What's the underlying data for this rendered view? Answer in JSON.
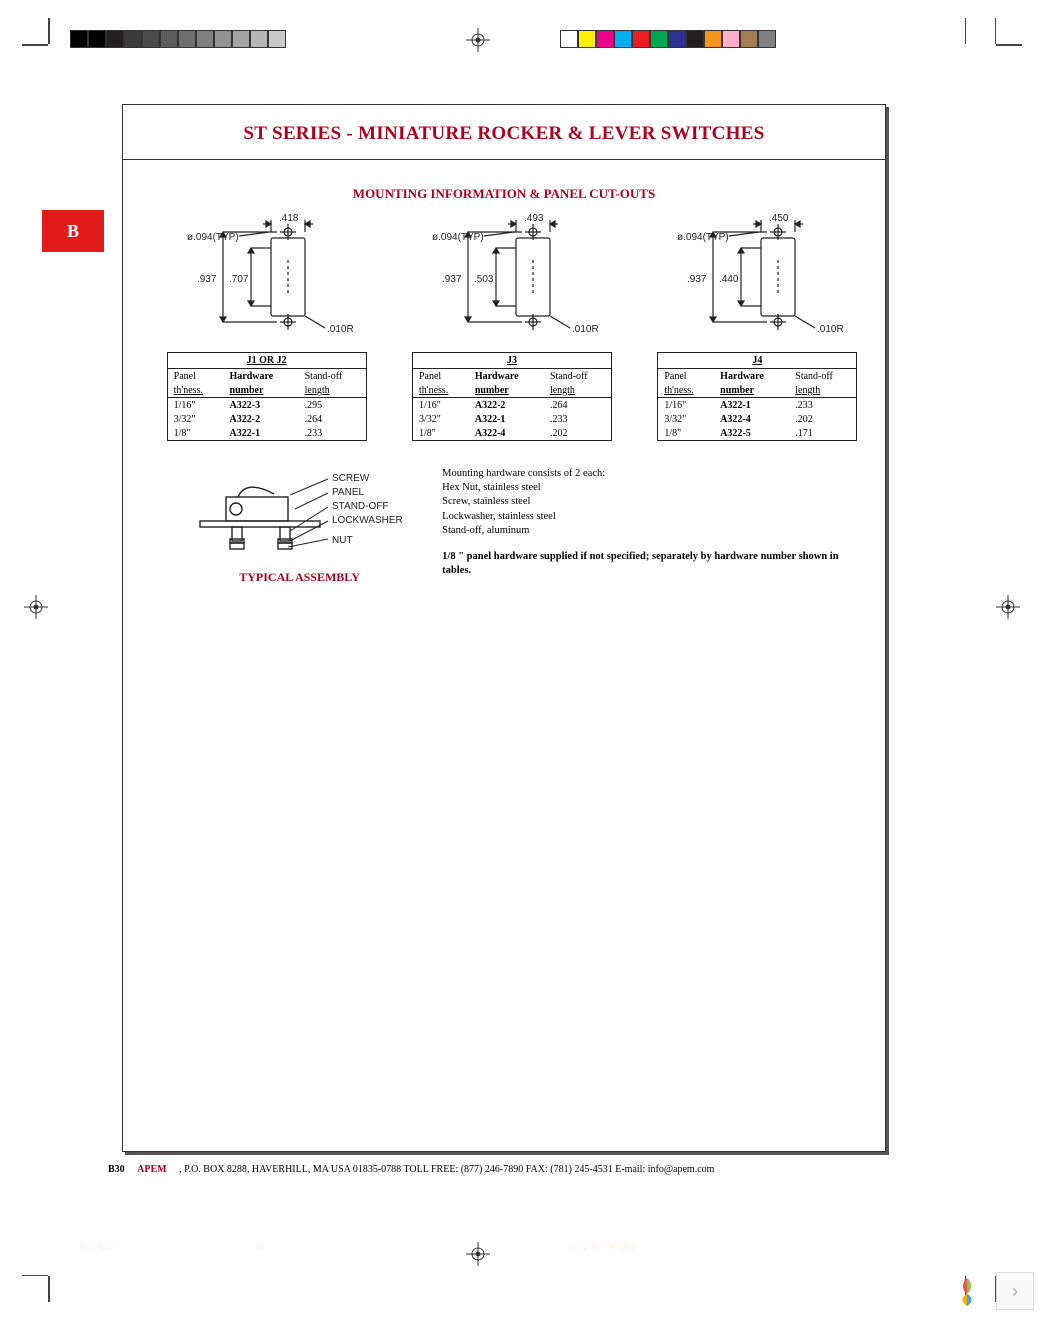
{
  "header": {
    "title": "ST SERIES - MINIATURE ROCKER & LEVER SWITCHES"
  },
  "section_tab": "B",
  "section_title": "MOUNTING INFORMATION & PANEL CUT-OUTS",
  "swatches_left": [
    "#000000",
    "#000000",
    "#231f20",
    "#3a3a3a",
    "#4b4b4b",
    "#5c5c5c",
    "#6e6e6e",
    "#808080",
    "#929292",
    "#a4a4a4",
    "#b6b6b6",
    "#c8c8c8"
  ],
  "swatches_right": [
    "#ffffff",
    "#fff000",
    "#ec008c",
    "#00aeef",
    "#ed1c24",
    "#00a651",
    "#2e3192",
    "#231f20",
    "#f7941d",
    "#ffaec9",
    "#a67c52",
    "#808285"
  ],
  "cutouts": [
    {
      "caption": "J1 OR J2",
      "dia_label": "ø.094(TYP)",
      "width": ".418",
      "h_outer": ".937",
      "h_inner": ".707",
      "radius": ".010R",
      "headers": [
        "Panel",
        "Hardware",
        "Stand-off"
      ],
      "subheaders": [
        "th'ness.",
        "number",
        "length"
      ],
      "rows": [
        [
          "1/16\"",
          "A322-3",
          ".295"
        ],
        [
          "3/32\"",
          "A322-2",
          ".264"
        ],
        [
          "1/8\"",
          "A322-1",
          ".233"
        ]
      ]
    },
    {
      "caption": "J3",
      "dia_label": "ø.094(TYP)",
      "width": ".493",
      "h_outer": ".937",
      "h_inner": ".503",
      "radius": ".010R",
      "headers": [
        "Panel",
        "Hardware",
        "Stand-off"
      ],
      "subheaders": [
        "th'ness.",
        "number",
        "length"
      ],
      "rows": [
        [
          "1/16\"",
          "A322-2",
          ".264"
        ],
        [
          "3/32\"",
          "A322-1",
          ".233"
        ],
        [
          "1/8\"",
          "A322-4",
          ".202"
        ]
      ]
    },
    {
      "caption": "J4",
      "dia_label": "ø.094(TYP)",
      "width": ".450",
      "h_outer": ".937",
      "h_inner": ".440",
      "radius": ".010R",
      "headers": [
        "Panel",
        "Hardware",
        "Stand-off"
      ],
      "subheaders": [
        "th'ness.",
        "number",
        "length"
      ],
      "rows": [
        [
          "1/16\"",
          "A322-1",
          ".233"
        ],
        [
          "3/32\"",
          "A322-4",
          ".202"
        ],
        [
          "1/8\"",
          "A322-5",
          ".171"
        ]
      ]
    }
  ],
  "assembly": {
    "caption": "TYPICAL ASSEMBLY",
    "labels": [
      "SCREW",
      "PANEL",
      "STAND-OFF",
      "LOCKWASHER",
      "NUT"
    ],
    "notes_intro": "Mounting hardware consists of 2 each:",
    "notes_items": [
      "Hex Nut, stainless steel",
      "Screw, stainless steel",
      "Lockwasher, stainless steel",
      "Stand-off, aluminum"
    ],
    "notes_bold": "1/8 \" panel hardware supplied if not specified; separately by hardware number shown in tables."
  },
  "footer": {
    "page": "B30",
    "brand": "APEM",
    "rest": ", P.O. BOX 8288, HAVERHILL, MA USA 01835-0788  TOLL FREE: (877) 246-7890  FAX: (781) 245-4531  E-mail: info@apem.com"
  },
  "ghost": {
    "left": "B26-B46",
    "mid": "36",
    "right": "10/11/06, 7:07 PM"
  },
  "colors": {
    "accent": "#b00020",
    "ink": "#222",
    "shadow": "#555"
  }
}
